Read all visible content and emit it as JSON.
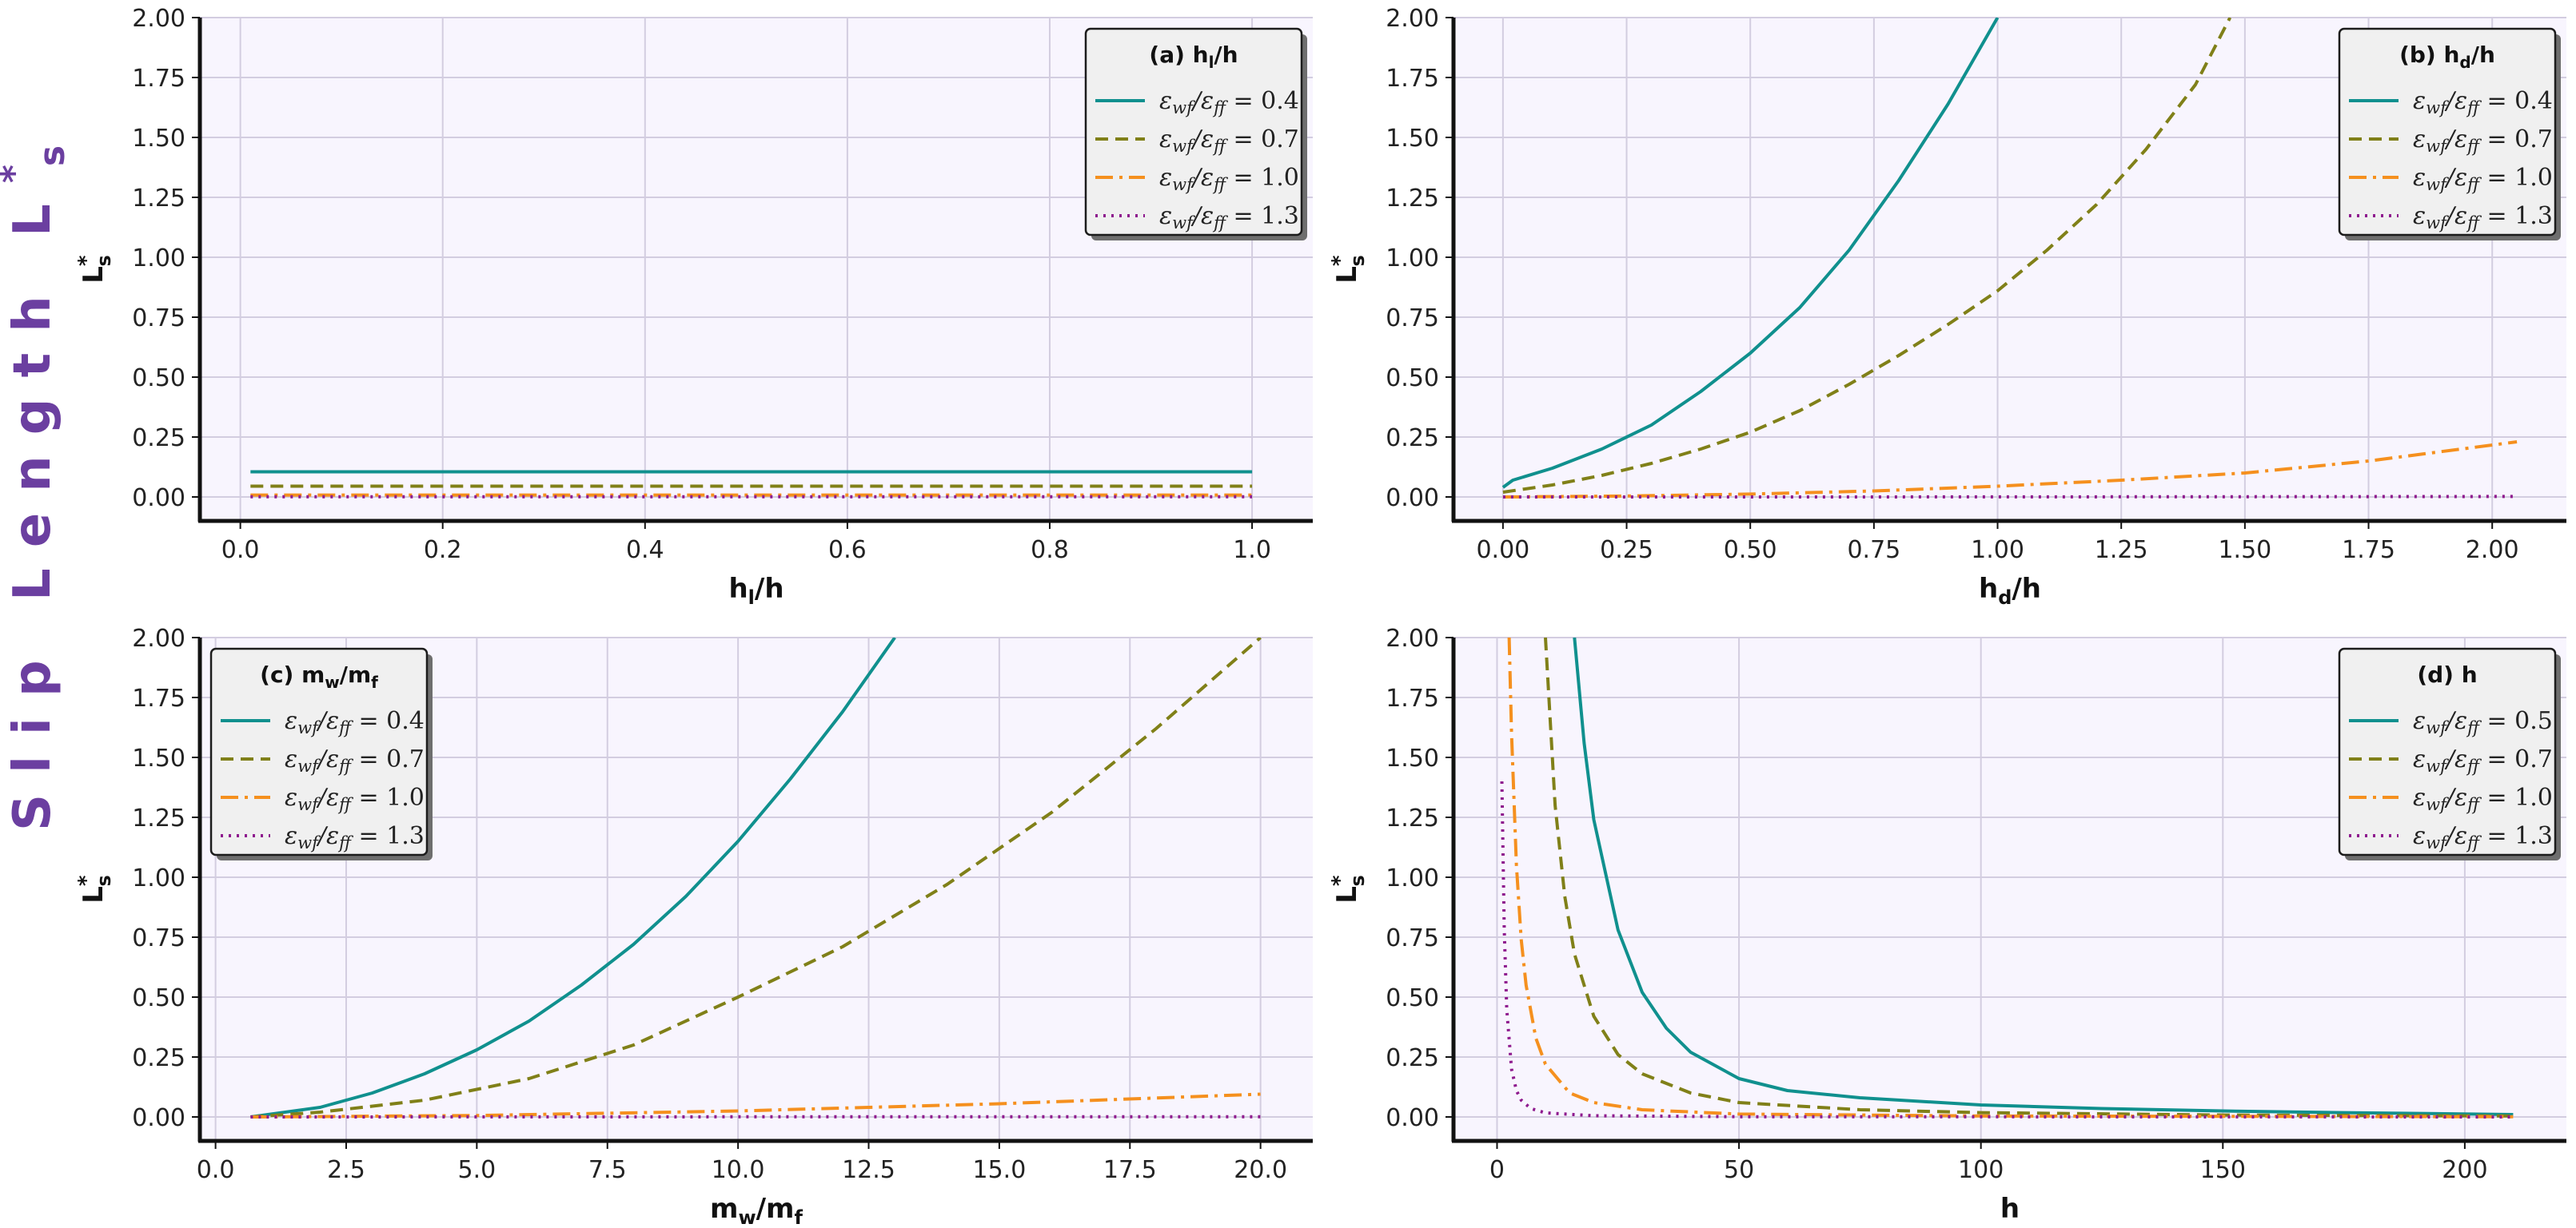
{
  "figure": {
    "y_title": "Slip Length L*s",
    "y_title_main": "Slip Length L",
    "y_title_sup": "*",
    "y_title_sub": "s",
    "colors": {
      "title": "#6b3fa0",
      "panel_bg": "#f8f5fe",
      "grid": "#d3cde0",
      "legend_bg": "#f0f0f0"
    }
  },
  "series_styles": [
    {
      "color": "#10908e",
      "dash": ""
    },
    {
      "color": "#808018",
      "dash": "16,9"
    },
    {
      "color": "#f5901e",
      "dash": "22,8,4,8"
    },
    {
      "color": "#8e1a8e",
      "dash": "3,7"
    }
  ],
  "chart_data": [
    {
      "id": "a",
      "type": "line",
      "legend_title": "(a) h_l/h",
      "legend_title_main": "(a) h",
      "legend_title_sub": "l",
      "legend_title_tail": "/h",
      "xlabel": "h_l/h",
      "xlabel_main": "h",
      "xlabel_sub": "l",
      "xlabel_tail": "/h",
      "ylabel": "L*s",
      "ylabel_main": "L",
      "ylabel_sup": "*",
      "ylabel_sub": "s",
      "xlim": [
        -0.04,
        1.06
      ],
      "ylim": [
        -0.1,
        2.0
      ],
      "xticks": [
        0.0,
        0.2,
        0.4,
        0.6,
        0.8,
        1.0
      ],
      "xtick_labels": [
        "0.0",
        "0.2",
        "0.4",
        "0.6",
        "0.8",
        "1.0"
      ],
      "yticks": [
        0.0,
        0.25,
        0.5,
        0.75,
        1.0,
        1.25,
        1.5,
        1.75,
        2.0
      ],
      "ytick_labels": [
        "0.00",
        "0.25",
        "0.50",
        "0.75",
        "1.00",
        "1.25",
        "1.50",
        "1.75",
        "2.00"
      ],
      "legend_position": "top-right",
      "series": [
        {
          "name": "εwf/εff = 0.4",
          "legend_prefix": "ε",
          "legend_mid": "/ε",
          "legend_tail": " = 0.4",
          "x": [
            0.01,
            0.25,
            0.5,
            0.75,
            1.0
          ],
          "y": [
            0.105,
            0.105,
            0.105,
            0.105,
            0.105
          ]
        },
        {
          "name": "εwf/εff = 0.7",
          "legend_prefix": "ε",
          "legend_mid": "/ε",
          "legend_tail": " = 0.7",
          "x": [
            0.01,
            0.25,
            0.5,
            0.75,
            1.0
          ],
          "y": [
            0.045,
            0.045,
            0.045,
            0.045,
            0.045
          ]
        },
        {
          "name": "εwf/εff = 1.0",
          "legend_prefix": "ε",
          "legend_mid": "/ε",
          "legend_tail": " = 1.0",
          "x": [
            0.01,
            0.25,
            0.5,
            0.75,
            1.0
          ],
          "y": [
            0.008,
            0.008,
            0.008,
            0.008,
            0.008
          ]
        },
        {
          "name": "εwf/εff = 1.3",
          "legend_prefix": "ε",
          "legend_mid": "/ε",
          "legend_tail": " = 1.3",
          "x": [
            0.01,
            0.25,
            0.5,
            0.75,
            1.0
          ],
          "y": [
            0.001,
            0.001,
            0.001,
            0.001,
            0.001
          ]
        }
      ]
    },
    {
      "id": "b",
      "type": "line",
      "legend_title": "(b) h_d/h",
      "legend_title_main": "(b) h",
      "legend_title_sub": "d",
      "legend_title_tail": "/h",
      "xlabel": "h_d/h",
      "xlabel_main": "h",
      "xlabel_sub": "d",
      "xlabel_tail": "/h",
      "ylabel": "L*s",
      "ylabel_main": "L",
      "ylabel_sup": "*",
      "ylabel_sub": "s",
      "xlim": [
        -0.1,
        2.15
      ],
      "ylim": [
        -0.1,
        2.0
      ],
      "xticks": [
        0.0,
        0.25,
        0.5,
        0.75,
        1.0,
        1.25,
        1.5,
        1.75,
        2.0
      ],
      "xtick_labels": [
        "0.00",
        "0.25",
        "0.50",
        "0.75",
        "1.00",
        "1.25",
        "1.50",
        "1.75",
        "2.00"
      ],
      "yticks": [
        0.0,
        0.25,
        0.5,
        0.75,
        1.0,
        1.25,
        1.5,
        1.75,
        2.0
      ],
      "ytick_labels": [
        "0.00",
        "0.25",
        "0.50",
        "0.75",
        "1.00",
        "1.25",
        "1.50",
        "1.75",
        "2.00"
      ],
      "legend_position": "top-right",
      "series": [
        {
          "name": "εwf/εff = 0.4",
          "legend_prefix": "ε",
          "legend_mid": "/ε",
          "legend_tail": " = 0.4",
          "x": [
            0.0,
            0.02,
            0.1,
            0.2,
            0.3,
            0.4,
            0.5,
            0.6,
            0.7,
            0.8,
            0.9,
            1.0
          ],
          "y": [
            0.04,
            0.07,
            0.12,
            0.2,
            0.3,
            0.44,
            0.6,
            0.79,
            1.03,
            1.32,
            1.64,
            2.0
          ]
        },
        {
          "name": "εwf/εff = 0.7",
          "legend_prefix": "ε",
          "legend_mid": "/ε",
          "legend_tail": " = 0.7",
          "x": [
            0.0,
            0.1,
            0.2,
            0.3,
            0.4,
            0.5,
            0.6,
            0.7,
            0.8,
            0.9,
            1.0,
            1.1,
            1.2,
            1.3,
            1.4,
            1.47
          ],
          "y": [
            0.02,
            0.05,
            0.09,
            0.14,
            0.2,
            0.27,
            0.36,
            0.47,
            0.59,
            0.72,
            0.86,
            1.03,
            1.22,
            1.45,
            1.72,
            2.0
          ]
        },
        {
          "name": "εwf/εff = 1.0",
          "legend_prefix": "ε",
          "legend_mid": "/ε",
          "legend_tail": " = 1.0",
          "x": [
            0.0,
            0.25,
            0.5,
            0.75,
            1.0,
            1.25,
            1.5,
            1.75,
            2.05
          ],
          "y": [
            0.0,
            0.004,
            0.012,
            0.025,
            0.045,
            0.07,
            0.1,
            0.15,
            0.23
          ]
        },
        {
          "name": "εwf/εff = 1.3",
          "legend_prefix": "ε",
          "legend_mid": "/ε",
          "legend_tail": " = 1.3",
          "x": [
            0.0,
            0.5,
            1.0,
            1.5,
            2.05
          ],
          "y": [
            0.0,
            0.0,
            0.0005,
            0.001,
            0.002
          ]
        }
      ]
    },
    {
      "id": "c",
      "type": "line",
      "legend_title": "(c) m_w/m_f",
      "legend_title_main": "(c) m",
      "legend_title_sub": "w",
      "legend_title_tail": "/m",
      "legend_title_sub2": "f",
      "xlabel": "m_w/m_f",
      "xlabel_main": "m",
      "xlabel_sub": "w",
      "xlabel_tail": "/m",
      "xlabel_sub2": "f",
      "ylabel": "L*s",
      "ylabel_main": "L",
      "ylabel_sup": "*",
      "ylabel_sub": "s",
      "xlim": [
        -0.3,
        21.0
      ],
      "ylim": [
        -0.1,
        2.0
      ],
      "xticks": [
        0.0,
        2.5,
        5.0,
        7.5,
        10.0,
        12.5,
        15.0,
        17.5,
        20.0
      ],
      "xtick_labels": [
        "0.0",
        "2.5",
        "5.0",
        "7.5",
        "10.0",
        "12.5",
        "15.0",
        "17.5",
        "20.0"
      ],
      "yticks": [
        0.0,
        0.25,
        0.5,
        0.75,
        1.0,
        1.25,
        1.5,
        1.75,
        2.0
      ],
      "ytick_labels": [
        "0.00",
        "0.25",
        "0.50",
        "0.75",
        "1.00",
        "1.25",
        "1.50",
        "1.75",
        "2.00"
      ],
      "legend_position": "top-left",
      "series": [
        {
          "name": "εwf/εff = 0.4",
          "legend_prefix": "ε",
          "legend_mid": "/ε",
          "legend_tail": " = 0.4",
          "x": [
            0.67,
            1.0,
            2.0,
            3.0,
            4.0,
            5.0,
            6.0,
            7.0,
            8.0,
            9.0,
            10.0,
            11.0,
            12.0,
            13.0
          ],
          "y": [
            0.0,
            0.01,
            0.04,
            0.1,
            0.18,
            0.28,
            0.4,
            0.55,
            0.72,
            0.92,
            1.15,
            1.41,
            1.69,
            2.0
          ]
        },
        {
          "name": "εwf/εff = 0.7",
          "legend_prefix": "ε",
          "legend_mid": "/ε",
          "legend_tail": " = 0.7",
          "x": [
            0.67,
            2.0,
            4.0,
            6.0,
            8.0,
            10.0,
            12.0,
            14.0,
            16.0,
            18.0,
            20.0
          ],
          "y": [
            0.0,
            0.02,
            0.07,
            0.16,
            0.3,
            0.5,
            0.71,
            0.97,
            1.27,
            1.62,
            2.0
          ]
        },
        {
          "name": "εwf/εff = 1.0",
          "legend_prefix": "ε",
          "legend_mid": "/ε",
          "legend_tail": " = 1.0",
          "x": [
            0.67,
            5.0,
            10.0,
            15.0,
            20.0
          ],
          "y": [
            0.0,
            0.006,
            0.025,
            0.055,
            0.095
          ]
        },
        {
          "name": "εwf/εff = 1.3",
          "legend_prefix": "ε",
          "legend_mid": "/ε",
          "legend_tail": " = 1.3",
          "x": [
            0.67,
            10.0,
            20.0
          ],
          "y": [
            0.0,
            0.0005,
            0.001
          ]
        }
      ]
    },
    {
      "id": "d",
      "type": "line",
      "legend_title": "(d) h",
      "legend_title_main": "(d) h",
      "xlabel": "h",
      "xlabel_main": "h",
      "ylabel": "L*s",
      "ylabel_main": "L",
      "ylabel_sup": "*",
      "ylabel_sub": "s",
      "xlim": [
        -9.0,
        221.0
      ],
      "ylim": [
        -0.1,
        2.0
      ],
      "xticks": [
        0,
        50,
        100,
        150,
        200
      ],
      "xtick_labels": [
        "0",
        "50",
        "100",
        "150",
        "200"
      ],
      "yticks": [
        0.0,
        0.25,
        0.5,
        0.75,
        1.0,
        1.25,
        1.5,
        1.75,
        2.0
      ],
      "ytick_labels": [
        "0.00",
        "0.25",
        "0.50",
        "0.75",
        "1.00",
        "1.25",
        "1.50",
        "1.75",
        "2.00"
      ],
      "legend_position": "top-right",
      "series": [
        {
          "name": "εwf/εff = 0.5",
          "legend_prefix": "ε",
          "legend_mid": "/ε",
          "legend_tail": " = 0.5",
          "x": [
            16.0,
            18.0,
            20.0,
            25.0,
            30.0,
            35.0,
            40.0,
            50.0,
            60.0,
            75.0,
            100.0,
            125.0,
            150.0,
            175.0,
            210.0
          ],
          "y": [
            2.0,
            1.56,
            1.24,
            0.78,
            0.52,
            0.37,
            0.27,
            0.16,
            0.11,
            0.08,
            0.05,
            0.035,
            0.025,
            0.018,
            0.01
          ]
        },
        {
          "name": "εwf/εff = 0.7",
          "legend_prefix": "ε",
          "legend_mid": "/ε",
          "legend_tail": " = 0.7",
          "x": [
            10.0,
            12.0,
            14.0,
            16.0,
            20.0,
            25.0,
            30.0,
            40.0,
            50.0,
            75.0,
            100.0,
            150.0,
            210.0
          ],
          "y": [
            2.0,
            1.3,
            0.92,
            0.68,
            0.42,
            0.26,
            0.18,
            0.1,
            0.06,
            0.03,
            0.018,
            0.008,
            0.004
          ]
        },
        {
          "name": "εwf/εff = 1.0",
          "legend_prefix": "ε",
          "legend_mid": "/ε",
          "legend_tail": " = 1.0",
          "x": [
            2.5,
            3.0,
            4.0,
            5.0,
            6.0,
            8.0,
            10.0,
            15.0,
            20.0,
            30.0,
            50.0,
            100.0,
            210.0
          ],
          "y": [
            2.0,
            1.6,
            1.05,
            0.74,
            0.55,
            0.33,
            0.22,
            0.1,
            0.06,
            0.03,
            0.012,
            0.004,
            0.001
          ]
        },
        {
          "name": "εwf/εff = 1.3",
          "legend_prefix": "ε",
          "legend_mid": "/ε",
          "legend_tail": " = 1.3",
          "x": [
            1.0,
            1.5,
            2.0,
            3.0,
            4.0,
            5.0,
            7.0,
            10.0,
            20.0,
            50.0,
            210.0
          ],
          "y": [
            1.4,
            0.78,
            0.45,
            0.2,
            0.11,
            0.07,
            0.035,
            0.017,
            0.005,
            0.001,
            0.0
          ]
        }
      ]
    }
  ]
}
